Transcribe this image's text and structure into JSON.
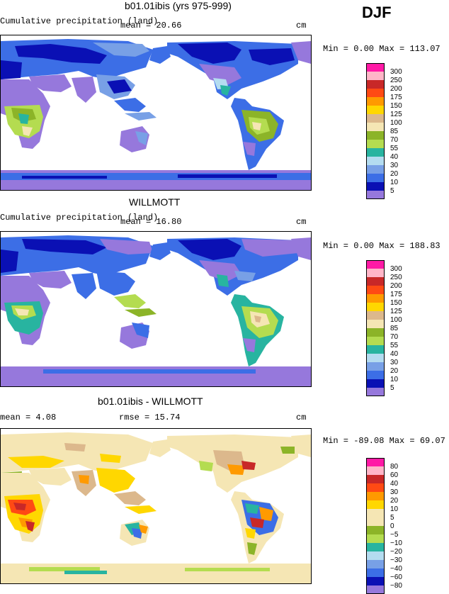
{
  "season": "DJF",
  "panels": [
    {
      "title": "b01.01ibis (yrs 975-999)",
      "subtitle_left": "Cumulative precipitation (land)",
      "subtitle_mid": "mean =  20.66",
      "units": "cm",
      "minmax": "Min =    0.00 Max = 113.07",
      "legend_labels": [
        "300",
        "250",
        "200",
        "175",
        "150",
        "125",
        "100",
        "85",
        "70",
        "55",
        "40",
        "30",
        "20",
        "10",
        "5"
      ]
    },
    {
      "title": "WILLMOTT",
      "subtitle_left": "Cumulative precipitation (land)",
      "subtitle_mid": "mean =  16.80",
      "units": "cm",
      "minmax": "Min =    0.00 Max = 188.83",
      "legend_labels": [
        "300",
        "250",
        "200",
        "175",
        "150",
        "125",
        "100",
        "85",
        "70",
        "55",
        "40",
        "30",
        "20",
        "10",
        "5"
      ]
    },
    {
      "title": "b01.01ibis - WILLMOTT",
      "subtitle_left": "mean =    4.08",
      "subtitle_mid": "rmse =  15.74",
      "units": "cm",
      "minmax": "Min = -89.08 Max =  69.07",
      "legend_labels": [
        "80",
        "60",
        "40",
        "30",
        "20",
        "10",
        "5",
        "0",
        "−5",
        "−10",
        "−20",
        "−30",
        "−40",
        "−60",
        "−80"
      ]
    }
  ],
  "colors": {
    "abs_scale": [
      "#ff1aa6",
      "#ffb6c8",
      "#c82828",
      "#ff4a14",
      "#ff9a00",
      "#ffd700",
      "#dcb88c",
      "#f5e6b4",
      "#8cb428",
      "#b4dc50",
      "#28b4a0",
      "#b4dcf0",
      "#78a0e6",
      "#3c6ee6",
      "#0a10b4",
      "#9678dc"
    ],
    "diff_scale": [
      "#ff1aa6",
      "#ffb6c8",
      "#c82828",
      "#ff4a14",
      "#ff9a00",
      "#ffd700",
      "#f5e6b4",
      "#f5e6b4",
      "#8cb428",
      "#b4dc50",
      "#28b4a0",
      "#b4dcf0",
      "#78a0e6",
      "#3c6ee6",
      "#0a10b4",
      "#9678dc"
    ]
  }
}
